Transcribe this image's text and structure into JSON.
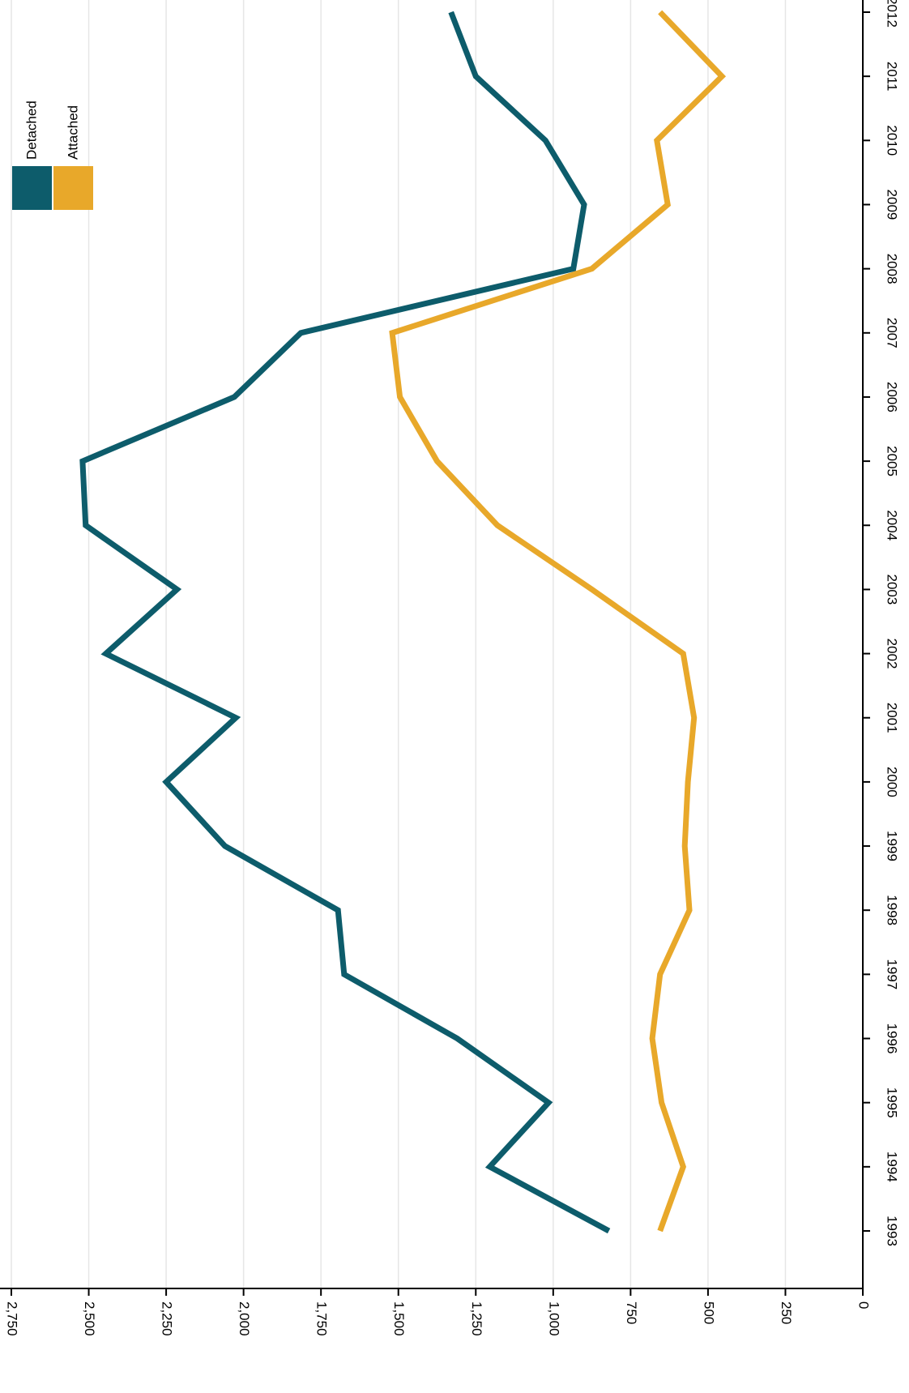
{
  "chart_data": {
    "type": "line",
    "orientation": "rotated-90-clockwise",
    "x": [
      1993,
      1994,
      1995,
      1996,
      1997,
      1998,
      1999,
      2000,
      2001,
      2002,
      2003,
      2004,
      2005,
      2006,
      2007,
      2008,
      2009,
      2010,
      2011,
      2012
    ],
    "x_tick_labels": [
      "1993",
      "1994",
      "1995",
      "1996",
      "1997",
      "1998",
      "1999",
      "2000",
      "2001",
      "2002",
      "2003",
      "2004",
      "2005",
      "2006",
      "2007",
      "2008",
      "2009",
      "2010",
      "2011",
      "2012"
    ],
    "y_ticks": [
      0,
      250,
      500,
      750,
      1000,
      1250,
      1500,
      1750,
      2000,
      2250,
      2500,
      2750
    ],
    "y_tick_labels": [
      "0",
      "250",
      "500",
      "750",
      "1,000",
      "1,250",
      "1,500",
      "1,750",
      "2,000",
      "2,250",
      "2,500",
      "2,750"
    ],
    "ylim": [
      0,
      2750
    ],
    "xlabel": "",
    "ylabel": "",
    "grid": "horizontal-value-gridlines",
    "legend_position": "top-left",
    "series": [
      {
        "name": "Detached",
        "color": "#0d5c6b",
        "values": [
          820,
          1205,
          1015,
          1310,
          1675,
          1695,
          2060,
          2250,
          2025,
          2445,
          2215,
          2510,
          2520,
          2030,
          1815,
          935,
          900,
          1025,
          1250,
          1330
        ]
      },
      {
        "name": "Attached",
        "color": "#e8a82a",
        "values": [
          655,
          580,
          650,
          680,
          655,
          560,
          575,
          565,
          545,
          580,
          875,
          1180,
          1375,
          1495,
          1520,
          875,
          630,
          665,
          455,
          655
        ]
      }
    ]
  }
}
